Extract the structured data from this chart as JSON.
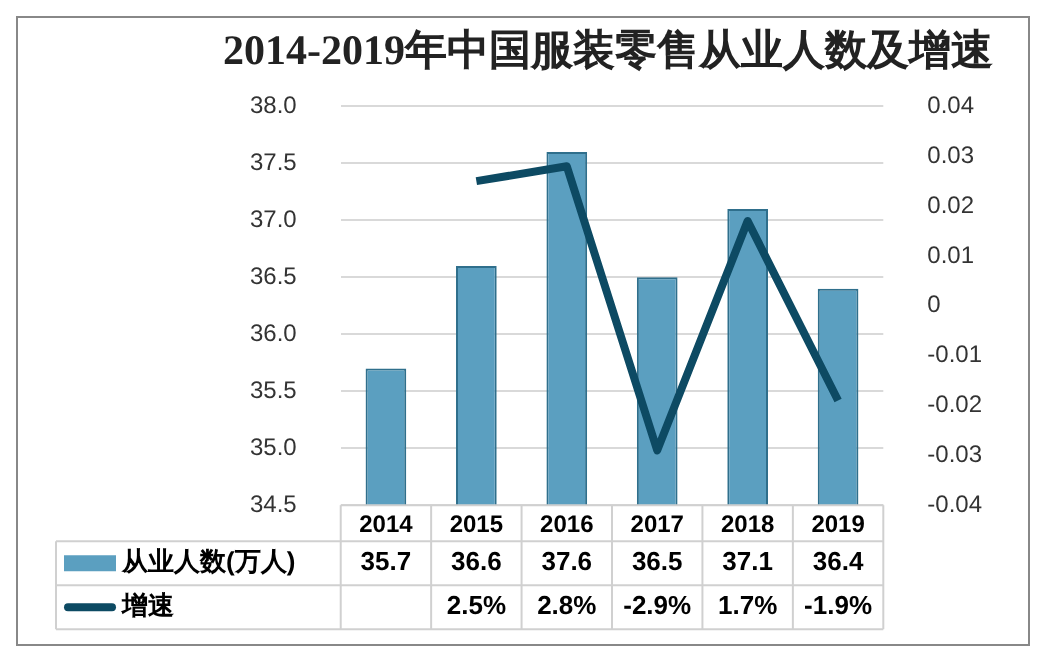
{
  "chart_data": {
    "type": "bar",
    "title": "2014-2019年中国服装零售从业人数及增速",
    "categories": [
      "2014",
      "2015",
      "2016",
      "2017",
      "2018",
      "2019"
    ],
    "series": [
      {
        "name": "从业人数(万人)",
        "color": "#5b9fc0",
        "values": [
          35.7,
          36.6,
          37.6,
          36.5,
          37.1,
          36.4
        ],
        "value_labels": [
          "35.7",
          "36.6",
          "37.6",
          "36.5",
          "37.1",
          "36.4"
        ]
      },
      {
        "name": "增速",
        "type": "line",
        "axis": "y2",
        "color": "#0d4a63",
        "values": [
          null,
          0.025,
          0.028,
          -0.029,
          0.017,
          -0.019
        ],
        "value_labels": [
          null,
          "2.5%",
          "2.8%",
          "-2.9%",
          "1.7%",
          "-1.9%"
        ]
      }
    ],
    "ylim": [
      34.5,
      38.0
    ],
    "yticks": [
      {
        "value": 34.5,
        "label": "34.5"
      },
      {
        "value": 35,
        "label": "35.0"
      },
      {
        "value": 35.5,
        "label": "35.5"
      },
      {
        "value": 36,
        "label": "36.0"
      },
      {
        "value": 36.5,
        "label": "36.5"
      },
      {
        "value": 37,
        "label": "37.0"
      },
      {
        "value": 37.5,
        "label": "37.5"
      },
      {
        "value": 38,
        "label": "38.0"
      }
    ],
    "y2lim": [
      -0.04,
      0.04
    ],
    "y2ticks": [
      -0.04,
      -0.03,
      -0.02,
      -0.01,
      0,
      0.01,
      0.02,
      0.03,
      0.04
    ],
    "grid": "y",
    "legend": "bottom",
    "marker": "none",
    "line_style": "solid"
  }
}
